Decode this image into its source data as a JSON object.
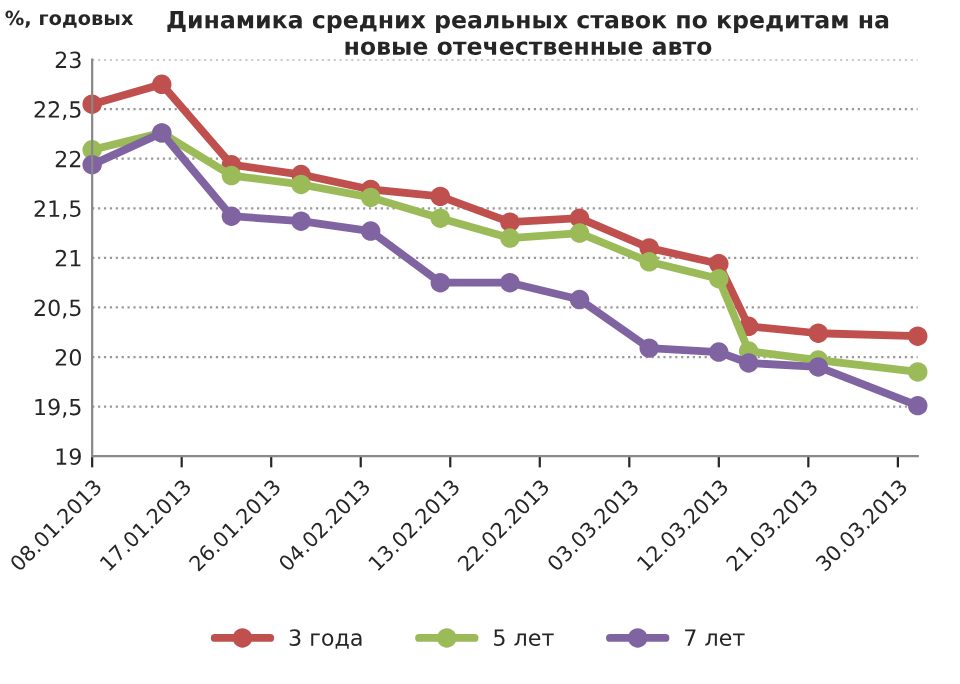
{
  "chart_data": {
    "type": "line",
    "title": "Динамика средних реальных ставок по кредитам на\nновые отечественные авто",
    "ylabel": "%, годовых",
    "x": [
      "2013-01-08",
      "2013-01-15",
      "2013-01-22",
      "2013-01-29",
      "2013-02-05",
      "2013-02-12",
      "2013-02-19",
      "2013-02-26",
      "2013-03-05",
      "2013-03-12",
      "2013-03-15",
      "2013-03-22",
      "2013-04-01"
    ],
    "series": [
      {
        "name": "3 года",
        "color": "#c0504d",
        "values": [
          22.55,
          22.75,
          21.94,
          21.84,
          21.69,
          21.62,
          21.36,
          21.4,
          21.1,
          20.94,
          20.31,
          20.24,
          20.21
        ]
      },
      {
        "name": "5 лет",
        "color": "#9bbb59",
        "values": [
          22.09,
          22.26,
          21.83,
          21.74,
          21.61,
          21.4,
          21.2,
          21.25,
          20.96,
          20.79,
          20.06,
          19.97,
          19.85
        ]
      },
      {
        "name": "7 лет",
        "color": "#8064a2",
        "values": [
          21.94,
          22.26,
          21.42,
          21.37,
          21.27,
          20.75,
          20.75,
          20.58,
          20.09,
          20.05,
          19.94,
          19.9,
          19.51
        ]
      }
    ],
    "xlim": [
      "2013-01-08",
      "2013-04-01"
    ],
    "xticks": [
      {
        "value": "2013-01-08",
        "label": "08.01.2013"
      },
      {
        "value": "2013-01-17",
        "label": "17.01.2013"
      },
      {
        "value": "2013-01-26",
        "label": "26.01.2013"
      },
      {
        "value": "2013-02-04",
        "label": "04.02.2013"
      },
      {
        "value": "2013-02-13",
        "label": "13.02.2013"
      },
      {
        "value": "2013-02-22",
        "label": "22.02.2013"
      },
      {
        "value": "2013-03-03",
        "label": "03.03.2013"
      },
      {
        "value": "2013-03-12",
        "label": "12.03.2013"
      },
      {
        "value": "2013-03-21",
        "label": "21.03.2013"
      },
      {
        "value": "2013-03-30",
        "label": "30.03.2013"
      }
    ],
    "ylim": [
      19,
      23
    ],
    "yticks": [
      19,
      {
        "value": 19.5,
        "label": "19,5"
      },
      20,
      {
        "value": 20.5,
        "label": "20,5"
      },
      21,
      {
        "value": 21.5,
        "label": "21,5"
      },
      22,
      {
        "value": 22.5,
        "label": "22,5"
      },
      23
    ],
    "grid": "y",
    "legend": "bottom",
    "marker": "circle",
    "line_style": "solid"
  }
}
